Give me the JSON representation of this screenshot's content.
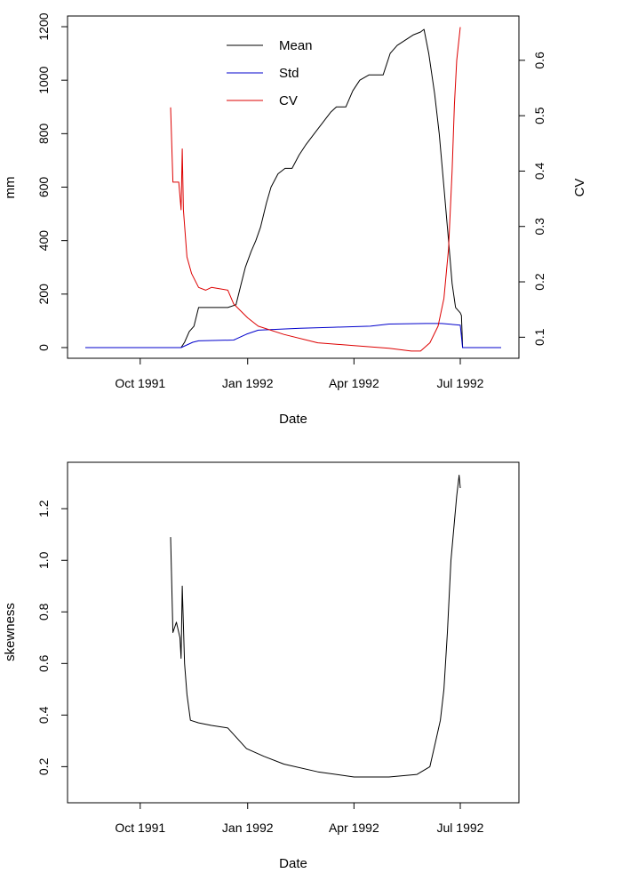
{
  "chart_data": [
    {
      "type": "line",
      "xlabel": "Date",
      "ylabel": "mm",
      "ylabel_right": "CV",
      "x_ticks": [
        "Oct 1991",
        "Jan 1992",
        "Apr 1992",
        "Jul 1992"
      ],
      "y_ticks": [
        "0",
        "200",
        "400",
        "600",
        "800",
        "1000",
        "1200"
      ],
      "y2_ticks": [
        "0.1",
        "0.2",
        "0.3",
        "0.4",
        "0.5",
        "0.6"
      ],
      "ylim": [
        -40,
        1240
      ],
      "y2lim": [
        0.062,
        0.68
      ],
      "grid": false,
      "legend": {
        "position": "top-center",
        "entries": [
          "Mean",
          "Std",
          "CV"
        ]
      },
      "series": [
        {
          "name": "Mean",
          "color": "#000000",
          "axis": "left",
          "points": [
            [
              "1991-08-15",
              0
            ],
            [
              "1991-11-05",
              0
            ],
            [
              "1991-11-08",
              20
            ],
            [
              "1991-11-12",
              60
            ],
            [
              "1991-11-16",
              80
            ],
            [
              "1991-11-20",
              150
            ],
            [
              "1991-12-15",
              150
            ],
            [
              "1991-12-22",
              160
            ],
            [
              "1991-12-26",
              230
            ],
            [
              "1991-12-30",
              300
            ],
            [
              "1992-01-04",
              360
            ],
            [
              "1992-01-08",
              400
            ],
            [
              "1992-01-12",
              450
            ],
            [
              "1992-01-17",
              540
            ],
            [
              "1992-01-21",
              600
            ],
            [
              "1992-01-27",
              650
            ],
            [
              "1992-02-02",
              670
            ],
            [
              "1992-02-08",
              670
            ],
            [
              "1992-02-14",
              720
            ],
            [
              "1992-02-20",
              760
            ],
            [
              "1992-02-27",
              800
            ],
            [
              "1992-03-05",
              840
            ],
            [
              "1992-03-12",
              880
            ],
            [
              "1992-03-17",
              900
            ],
            [
              "1992-03-25",
              900
            ],
            [
              "1992-03-31",
              960
            ],
            [
              "1992-04-06",
              1000
            ],
            [
              "1992-04-14",
              1020
            ],
            [
              "1992-04-26",
              1020
            ],
            [
              "1992-05-02",
              1100
            ],
            [
              "1992-05-08",
              1130
            ],
            [
              "1992-05-15",
              1150
            ],
            [
              "1992-05-22",
              1170
            ],
            [
              "1992-05-28",
              1180
            ],
            [
              "1992-05-31",
              1190
            ],
            [
              "1992-06-04",
              1100
            ],
            [
              "1992-06-09",
              950
            ],
            [
              "1992-06-13",
              800
            ],
            [
              "1992-06-17",
              600
            ],
            [
              "1992-06-21",
              400
            ],
            [
              "1992-06-24",
              240
            ],
            [
              "1992-06-27",
              150
            ],
            [
              "1992-07-01",
              130
            ],
            [
              "1992-07-02",
              120
            ],
            [
              "1992-07-03",
              0
            ],
            [
              "1992-08-05",
              0
            ]
          ]
        },
        {
          "name": "Std",
          "color": "#0000cc",
          "axis": "left",
          "points": [
            [
              "1991-08-15",
              0
            ],
            [
              "1991-11-05",
              0
            ],
            [
              "1991-11-15",
              20
            ],
            [
              "1991-11-20",
              25
            ],
            [
              "1991-12-20",
              28
            ],
            [
              "1991-12-31",
              50
            ],
            [
              "1992-01-10",
              65
            ],
            [
              "1992-02-15",
              72
            ],
            [
              "1992-03-15",
              76
            ],
            [
              "1992-04-15",
              80
            ],
            [
              "1992-05-01",
              88
            ],
            [
              "1992-06-01",
              90
            ],
            [
              "1992-06-15",
              90
            ],
            [
              "1992-07-01",
              84
            ],
            [
              "1992-07-03",
              0
            ],
            [
              "1992-08-05",
              0
            ]
          ]
        },
        {
          "name": "CV",
          "color": "#dd0000",
          "axis": "right",
          "points": [
            [
              "1991-10-27",
              0.515
            ],
            [
              "1991-10-29",
              0.38
            ],
            [
              "1991-11-03",
              0.38
            ],
            [
              "1991-11-05",
              0.33
            ],
            [
              "1991-11-06",
              0.44
            ],
            [
              "1991-11-07",
              0.33
            ],
            [
              "1991-11-10",
              0.245
            ],
            [
              "1991-11-14",
              0.215
            ],
            [
              "1991-11-20",
              0.19
            ],
            [
              "1991-11-26",
              0.185
            ],
            [
              "1991-12-01",
              0.19
            ],
            [
              "1991-12-15",
              0.185
            ],
            [
              "1991-12-20",
              0.16
            ],
            [
              "1992-01-01",
              0.135
            ],
            [
              "1992-01-10",
              0.12
            ],
            [
              "1992-02-01",
              0.105
            ],
            [
              "1992-03-01",
              0.09
            ],
            [
              "1992-04-01",
              0.085
            ],
            [
              "1992-05-01",
              0.08
            ],
            [
              "1992-05-20",
              0.075
            ],
            [
              "1992-05-28",
              0.075
            ],
            [
              "1992-06-05",
              0.09
            ],
            [
              "1992-06-12",
              0.12
            ],
            [
              "1992-06-17",
              0.17
            ],
            [
              "1992-06-21",
              0.26
            ],
            [
              "1992-06-24",
              0.4
            ],
            [
              "1992-06-26",
              0.52
            ],
            [
              "1992-06-28",
              0.6
            ],
            [
              "1992-07-01",
              0.66
            ]
          ]
        }
      ]
    },
    {
      "type": "line",
      "xlabel": "Date",
      "ylabel": "skewness",
      "x_ticks": [
        "Oct 1991",
        "Jan 1992",
        "Apr 1992",
        "Jul 1992"
      ],
      "y_ticks": [
        "0.2",
        "0.4",
        "0.6",
        "0.8",
        "1.0",
        "1.2"
      ],
      "ylim": [
        0.06,
        1.38
      ],
      "grid": false,
      "series": [
        {
          "color": "#000000",
          "points": [
            [
              "1991-10-27",
              1.09
            ],
            [
              "1991-10-29",
              0.72
            ],
            [
              "1991-11-01",
              0.76
            ],
            [
              "1991-11-04",
              0.7
            ],
            [
              "1991-11-05",
              0.62
            ],
            [
              "1991-11-06",
              0.9
            ],
            [
              "1991-11-08",
              0.6
            ],
            [
              "1991-11-10",
              0.48
            ],
            [
              "1991-11-13",
              0.38
            ],
            [
              "1991-11-20",
              0.37
            ],
            [
              "1991-12-01",
              0.36
            ],
            [
              "1991-12-15",
              0.35
            ],
            [
              "1991-12-31",
              0.27
            ],
            [
              "1992-01-15",
              0.24
            ],
            [
              "1992-02-01",
              0.21
            ],
            [
              "1992-03-01",
              0.18
            ],
            [
              "1992-04-01",
              0.16
            ],
            [
              "1992-05-01",
              0.16
            ],
            [
              "1992-05-25",
              0.17
            ],
            [
              "1992-06-05",
              0.2
            ],
            [
              "1992-06-10",
              0.3
            ],
            [
              "1992-06-14",
              0.38
            ],
            [
              "1992-06-17",
              0.5
            ],
            [
              "1992-06-20",
              0.72
            ],
            [
              "1992-06-23",
              1.0
            ],
            [
              "1992-06-26",
              1.15
            ],
            [
              "1992-06-28",
              1.25
            ],
            [
              "1992-06-30",
              1.33
            ],
            [
              "1992-07-01",
              1.28
            ]
          ]
        }
      ]
    }
  ]
}
